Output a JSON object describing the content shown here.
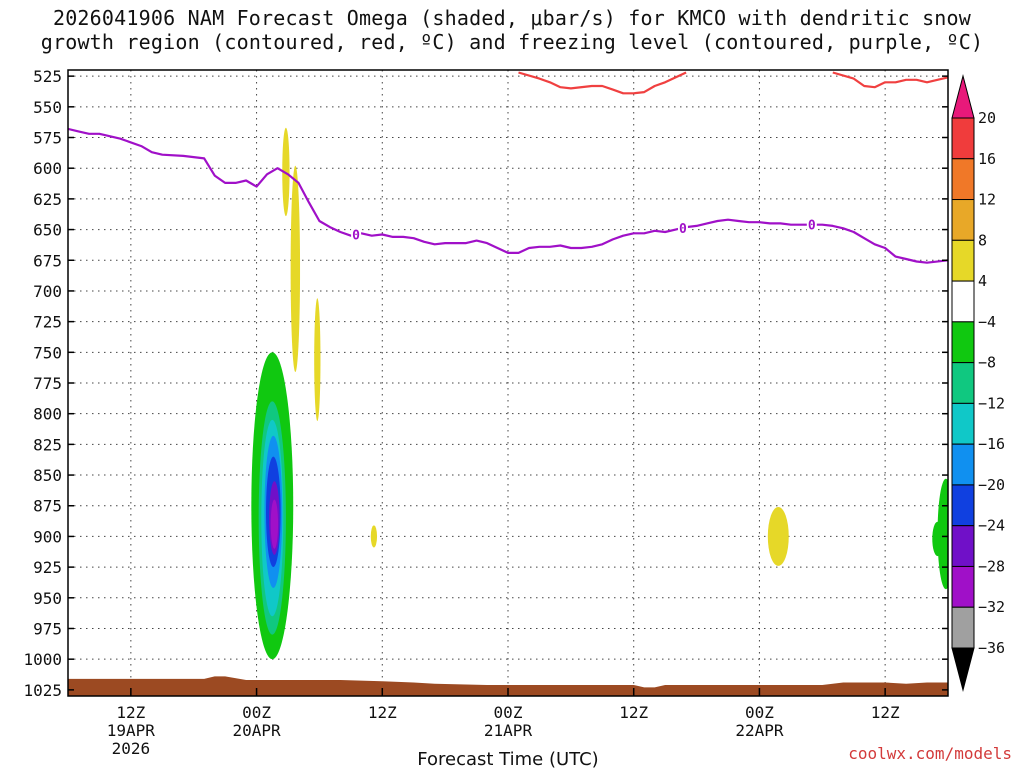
{
  "chart_data": {
    "type": "heatmap",
    "title_lines": [
      "2026041906 NAM Forecast Omega (shaded, μbar/s) for KMCO with dendritic snow",
      "growth region (contoured, red, ºC) and freezing level (contoured, purple, ºC)"
    ],
    "xlabel": "Forecast Time (UTC)",
    "credit": "coolwx.com/models",
    "x_axis": {
      "unit": "hours since 2026041906",
      "range": [
        0,
        84
      ],
      "ticks": [
        {
          "x": 6,
          "lines": [
            "12Z",
            "19APR",
            "2026"
          ]
        },
        {
          "x": 18,
          "lines": [
            "00Z",
            "20APR"
          ]
        },
        {
          "x": 30,
          "lines": [
            "12Z"
          ]
        },
        {
          "x": 42,
          "lines": [
            "00Z",
            "21APR"
          ]
        },
        {
          "x": 54,
          "lines": [
            "12Z"
          ]
        },
        {
          "x": 66,
          "lines": [
            "00Z",
            "22APR"
          ]
        },
        {
          "x": 78,
          "lines": [
            "12Z"
          ]
        }
      ]
    },
    "y_axis": {
      "unit": "hPa",
      "range": [
        1030,
        520
      ],
      "ticks": [
        525,
        550,
        575,
        600,
        625,
        650,
        675,
        700,
        725,
        750,
        775,
        800,
        825,
        850,
        875,
        900,
        925,
        950,
        975,
        1000,
        1025
      ]
    },
    "colorbar": {
      "unit": "μbar/s",
      "labels": [
        20,
        16,
        12,
        8,
        4,
        -4,
        -8,
        -12,
        -16,
        -20,
        -24,
        -28,
        -32,
        -36
      ],
      "colors": [
        "#e8197a",
        "#f03c3c",
        "#f07828",
        "#e8a828",
        "#e6d828",
        "#ffffff",
        "#10c810",
        "#10c880",
        "#10c8c8",
        "#1090f0",
        "#1040e0",
        "#7010c8",
        "#a010c8",
        "#a0a0a0",
        "#000000"
      ]
    },
    "series": [
      {
        "name": "freezing level",
        "color": "#a010c8",
        "label_value": "0",
        "label_at": [
          27.5,
          58.7,
          71.0
        ],
        "points": [
          [
            0,
            568
          ],
          [
            1,
            570
          ],
          [
            2,
            572
          ],
          [
            3,
            572
          ],
          [
            5,
            576
          ],
          [
            7,
            582
          ],
          [
            8,
            587
          ],
          [
            9,
            589
          ],
          [
            11,
            590
          ],
          [
            13,
            592
          ],
          [
            14,
            606
          ],
          [
            15,
            612
          ],
          [
            16,
            612
          ],
          [
            17,
            610
          ],
          [
            18,
            615
          ],
          [
            19,
            605
          ],
          [
            20,
            600
          ],
          [
            21,
            605
          ],
          [
            22,
            612
          ],
          [
            23,
            628
          ],
          [
            24,
            643
          ],
          [
            25,
            648
          ],
          [
            26,
            652
          ],
          [
            27,
            655
          ],
          [
            28,
            653
          ],
          [
            29,
            655
          ],
          [
            30,
            654
          ],
          [
            31,
            656
          ],
          [
            32,
            656
          ],
          [
            33,
            657
          ],
          [
            34,
            660
          ],
          [
            35,
            662
          ],
          [
            36,
            661
          ],
          [
            37,
            661
          ],
          [
            38,
            661
          ],
          [
            39,
            659
          ],
          [
            40,
            661
          ],
          [
            41,
            665
          ],
          [
            42,
            669
          ],
          [
            43,
            669
          ],
          [
            44,
            665
          ],
          [
            45,
            664
          ],
          [
            46,
            664
          ],
          [
            47,
            663
          ],
          [
            48,
            665
          ],
          [
            49,
            665
          ],
          [
            50,
            664
          ],
          [
            51,
            662
          ],
          [
            52,
            658
          ],
          [
            53,
            655
          ],
          [
            54,
            653
          ],
          [
            55,
            653
          ],
          [
            56,
            651
          ],
          [
            57,
            652
          ],
          [
            58,
            650
          ],
          [
            59,
            648
          ],
          [
            60,
            647
          ],
          [
            61,
            645
          ],
          [
            62,
            643
          ],
          [
            63,
            642
          ],
          [
            64,
            643
          ],
          [
            65,
            644
          ],
          [
            66,
            644
          ],
          [
            67,
            645
          ],
          [
            68,
            645
          ],
          [
            69,
            646
          ],
          [
            70,
            646
          ],
          [
            71,
            646
          ],
          [
            72,
            646
          ],
          [
            73,
            647
          ],
          [
            74,
            649
          ],
          [
            75,
            652
          ],
          [
            76,
            657
          ],
          [
            77,
            662
          ],
          [
            78,
            665
          ],
          [
            79,
            672
          ],
          [
            80,
            674
          ],
          [
            81,
            676
          ],
          [
            82,
            677
          ],
          [
            84,
            675
          ]
        ]
      },
      {
        "name": "dendritic snow growth region",
        "color": "#f04040",
        "segments": [
          [
            [
              43,
              522
            ],
            [
              45,
              527
            ],
            [
              46,
              530
            ],
            [
              47,
              534
            ],
            [
              48,
              535
            ],
            [
              50,
              533
            ],
            [
              51,
              533
            ],
            [
              52,
              536
            ],
            [
              53,
              539
            ],
            [
              54,
              539
            ],
            [
              55,
              538
            ],
            [
              56,
              533
            ],
            [
              57,
              530
            ],
            [
              58,
              526
            ],
            [
              59,
              522
            ]
          ],
          [
            [
              73,
              522
            ],
            [
              75,
              527
            ],
            [
              76,
              533
            ],
            [
              77,
              534
            ],
            [
              78,
              530
            ],
            [
              79,
              530
            ],
            [
              80,
              528
            ],
            [
              81,
              528
            ],
            [
              82,
              530
            ],
            [
              83,
              528
            ],
            [
              84,
              526
            ]
          ]
        ]
      }
    ],
    "omega_regions": [
      {
        "value": 4,
        "center": [
          20.8,
          603
        ],
        "half_width": 0.35,
        "half_height": 36
      },
      {
        "value": 4,
        "center": [
          21.7,
          682
        ],
        "half_width": 0.45,
        "half_height": 84
      },
      {
        "value": 4,
        "center": [
          23.8,
          756
        ],
        "half_width": 0.3,
        "half_height": 50
      },
      {
        "value": 4,
        "center": [
          29.2,
          900
        ],
        "half_width": 0.3,
        "half_height": 9
      },
      {
        "value": 4,
        "center": [
          67.8,
          900
        ],
        "half_width": 1.0,
        "half_height": 24
      },
      {
        "value": -4,
        "center": [
          19.5,
          875
        ],
        "half_width": 2.0,
        "half_height": 125
      },
      {
        "value": -8,
        "center": [
          19.5,
          885
        ],
        "half_width": 1.3,
        "half_height": 95
      },
      {
        "value": -12,
        "center": [
          19.5,
          885
        ],
        "half_width": 1.05,
        "half_height": 80
      },
      {
        "value": -16,
        "center": [
          19.6,
          880
        ],
        "half_width": 0.85,
        "half_height": 62
      },
      {
        "value": -20,
        "center": [
          19.6,
          880
        ],
        "half_width": 0.7,
        "half_height": 45
      },
      {
        "value": -24,
        "center": [
          19.7,
          885
        ],
        "half_width": 0.5,
        "half_height": 30
      },
      {
        "value": -28,
        "center": [
          19.7,
          890
        ],
        "half_width": 0.35,
        "half_height": 20
      },
      {
        "value": -4,
        "center": [
          83.8,
          898
        ],
        "half_width": 0.8,
        "half_height": 45
      },
      {
        "value": -4,
        "center": [
          83.0,
          902
        ],
        "half_width": 0.5,
        "half_height": 14
      }
    ],
    "surface_shading": {
      "color": "#9c4a22",
      "points": [
        [
          0,
          1016
        ],
        [
          13,
          1016
        ],
        [
          14,
          1014
        ],
        [
          15,
          1014
        ],
        [
          17,
          1017
        ],
        [
          26,
          1017
        ],
        [
          30,
          1018
        ],
        [
          33,
          1019
        ],
        [
          35,
          1020
        ],
        [
          40,
          1021
        ],
        [
          54,
          1021
        ],
        [
          55,
          1023
        ],
        [
          56,
          1023
        ],
        [
          57,
          1021
        ],
        [
          66,
          1021
        ],
        [
          72,
          1021
        ],
        [
          74,
          1019
        ],
        [
          78,
          1019
        ],
        [
          80,
          1020
        ],
        [
          82,
          1019
        ],
        [
          84,
          1019
        ]
      ]
    }
  }
}
